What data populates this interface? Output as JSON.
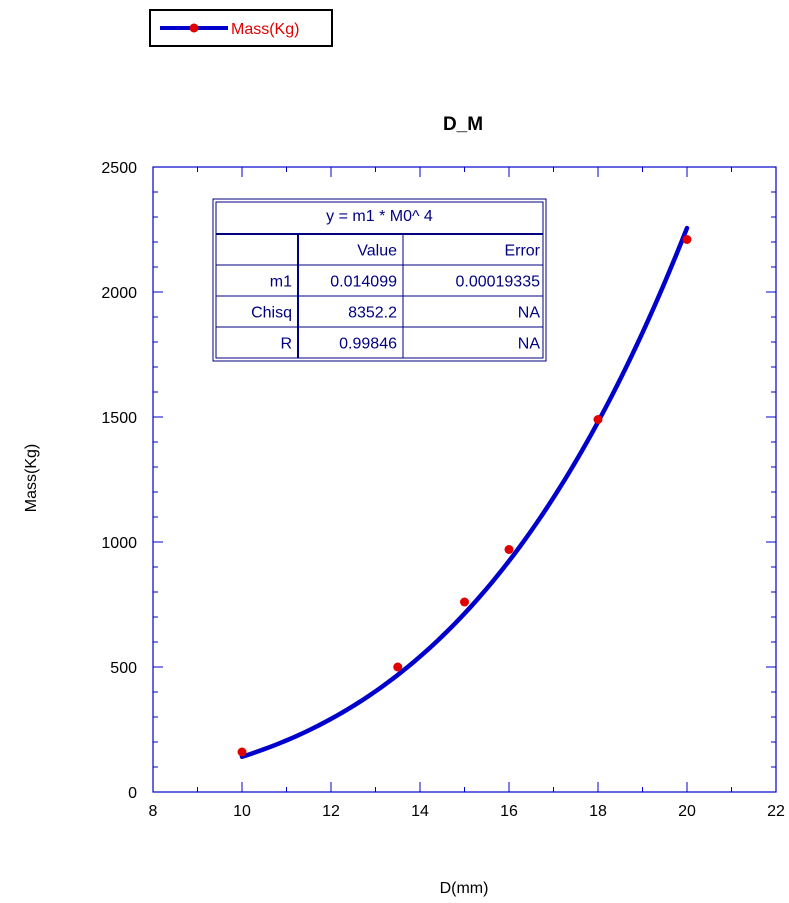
{
  "chart_data": {
    "type": "scatter",
    "title": "D_M",
    "xlabel": "D(mm)",
    "ylabel": "Mass(Kg)",
    "xlim": [
      8,
      22
    ],
    "ylim": [
      0,
      2500
    ],
    "x_ticks": [
      8,
      10,
      12,
      14,
      16,
      18,
      20,
      22
    ],
    "y_ticks": [
      0,
      500,
      1000,
      1500,
      2000,
      2500
    ],
    "grid": false,
    "legend": {
      "placement": "top-left",
      "entries": [
        "Mass(Kg)"
      ]
    },
    "series": [
      {
        "name": "Mass(Kg)",
        "x": [
          10,
          13.5,
          15,
          16,
          18,
          20
        ],
        "y": [
          160,
          500,
          760,
          970,
          1490,
          2210
        ],
        "marker_color": "#e00000",
        "line_color": "#0000cc"
      }
    ],
    "fit": {
      "model": "y = m1 * M0^4",
      "m1": 0.014099,
      "x_range": [
        10,
        20
      ],
      "line_color": "#0000cc",
      "table": {
        "title": "y = m1 * M0^ 4",
        "header": [
          "",
          "Value",
          "Error"
        ],
        "rows": [
          [
            "m1",
            "0.014099",
            "0.00019335"
          ],
          [
            "Chisq",
            "8352.2",
            "NA"
          ],
          [
            "R",
            "0.99846",
            "NA"
          ]
        ]
      }
    }
  }
}
